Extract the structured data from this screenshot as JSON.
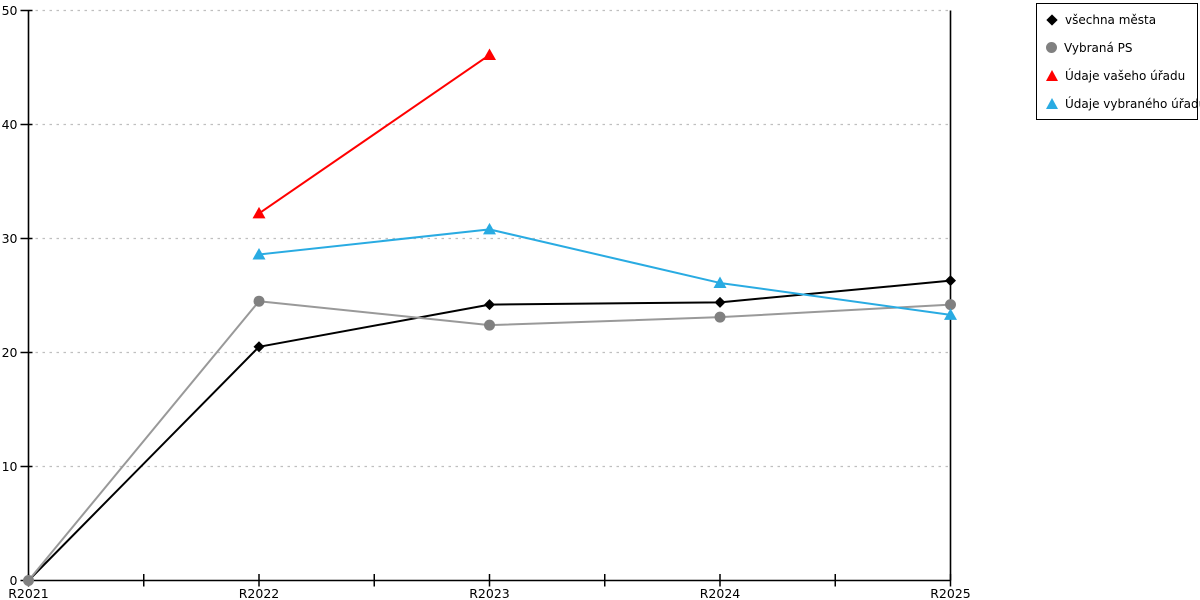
{
  "chart_data": {
    "type": "line",
    "title": "",
    "xlabel": "",
    "ylabel": "",
    "categories": [
      "R2021",
      "R2022",
      "R2023",
      "R2024",
      "R2025"
    ],
    "series": [
      {
        "name": "všechna města",
        "color": "#000000",
        "line_color": "#000000",
        "marker": "diamond",
        "values": [
          0,
          20.5,
          24.2,
          24.4,
          26.3
        ]
      },
      {
        "name": "Vybraná PS",
        "color": "#808080",
        "line_color": "#999999",
        "marker": "circle",
        "values": [
          0,
          24.5,
          22.4,
          23.1,
          24.2
        ]
      },
      {
        "name": "Údaje vašeho úřadu",
        "color": "#ff0000",
        "line_color": "#ff0000",
        "marker": "triangle",
        "values": [
          null,
          32.2,
          46.1,
          null,
          null
        ]
      },
      {
        "name": "Údaje vybraného úřadu",
        "color": "#29abe2",
        "line_color": "#29abe2",
        "marker": "triangle",
        "values": [
          null,
          28.6,
          30.8,
          26.1,
          23.3
        ]
      }
    ],
    "ylim": [
      0,
      50
    ],
    "yticks": [
      0,
      10,
      20,
      30,
      40,
      50
    ],
    "x_minor_ticks_per_interval": 1,
    "grid": "horizontal-dotted",
    "grid_color": "#bfbfbf",
    "axis_color": "#000000",
    "tick_label_color": "#000000",
    "legend_position": "top-right-outside",
    "legend_border_color": "#000000"
  }
}
